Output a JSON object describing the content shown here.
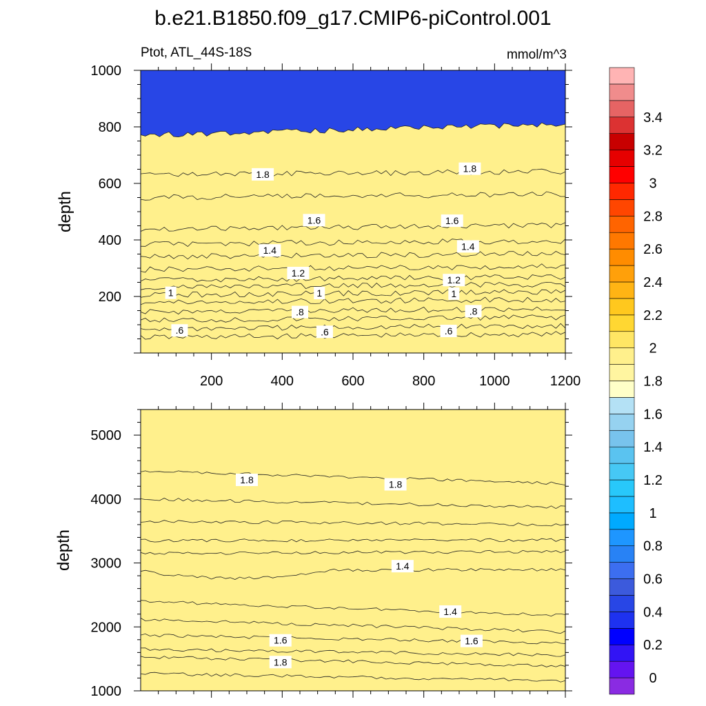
{
  "chart_data": [
    {
      "type": "heatmap",
      "title": "b.e21.B1850.f09_g17.CMIP6-piControl.001",
      "subtitle_left": "Ptot, ATL_44S-18S",
      "subtitle_right": "mmol/m^3",
      "ylabel": "depth",
      "xlim": [
        0,
        1200
      ],
      "ylim": [
        1000,
        0
      ],
      "x_ticks": [
        200,
        400,
        600,
        800,
        1000,
        1200
      ],
      "y_ticks": [
        200,
        400,
        600,
        800,
        1000
      ],
      "contour_depths": [
        {
          "level": 0.5,
          "depth": 55
        },
        {
          "level": 0.6,
          "depth": 85
        },
        {
          "level": 0.7,
          "depth": 115
        },
        {
          "level": 0.8,
          "depth": 145
        },
        {
          "level": 0.9,
          "depth": 178
        },
        {
          "level": 1.0,
          "depth": 205
        },
        {
          "level": 1.1,
          "depth": 232
        },
        {
          "level": 1.2,
          "depth": 258
        },
        {
          "level": 1.3,
          "depth": 295
        },
        {
          "level": 1.4,
          "depth": 340
        },
        {
          "level": 1.5,
          "depth": 385
        },
        {
          "level": 1.6,
          "depth": 440
        },
        {
          "level": 1.7,
          "depth": 550
        },
        {
          "level": 1.8,
          "depth": 630
        },
        {
          "level": 1.9,
          "depth": 770
        }
      ],
      "labels": [
        {
          "text": ".6",
          "x": 110,
          "depth": 80
        },
        {
          "text": ".6",
          "x": 520,
          "depth": 75
        },
        {
          "text": ".6",
          "x": 870,
          "depth": 78
        },
        {
          "text": ".8",
          "x": 450,
          "depth": 145
        },
        {
          "text": ".8",
          "x": 940,
          "depth": 148
        },
        {
          "text": "1",
          "x": 85,
          "depth": 213
        },
        {
          "text": "1",
          "x": 505,
          "depth": 212
        },
        {
          "text": "1",
          "x": 885,
          "depth": 210
        },
        {
          "text": "1.2",
          "x": 445,
          "depth": 283
        },
        {
          "text": "1.2",
          "x": 885,
          "depth": 258
        },
        {
          "text": "1.4",
          "x": 365,
          "depth": 363
        },
        {
          "text": "1.4",
          "x": 925,
          "depth": 377
        },
        {
          "text": "1.6",
          "x": 490,
          "depth": 470
        },
        {
          "text": "1.6",
          "x": 880,
          "depth": 468
        },
        {
          "text": "1.8",
          "x": 345,
          "depth": 632
        },
        {
          "text": "1.8",
          "x": 930,
          "depth": 652
        }
      ]
    },
    {
      "type": "heatmap",
      "ylabel": "depth",
      "xlim": [
        0,
        1200
      ],
      "ylim": [
        5400,
        1000
      ],
      "y_ticks": [
        1000,
        2000,
        3000,
        4000,
        5000
      ],
      "contour_depths": [
        {
          "level": 1.9,
          "depth_start": 1270,
          "depth_end": 1160
        },
        {
          "level": 1.8,
          "depth_start": 1530,
          "depth_end": 1390
        },
        {
          "level": 1.7,
          "depth_start": 1650,
          "depth_end": 1560
        },
        {
          "level": 1.6,
          "depth_start": 1870,
          "depth_end": 1750
        },
        {
          "level": 1.5,
          "depth_start": 2120,
          "depth_end": 1920
        },
        {
          "level": 1.4,
          "depth_start": 2400,
          "depth_end": 2180
        },
        {
          "level": 1.4,
          "depth_start": 2870,
          "depth_end": 2900
        },
        {
          "level": 1.5,
          "depth_start": 3150,
          "depth_end": 3180
        },
        {
          "level": 1.6,
          "depth_start": 3350,
          "depth_end": 3360
        },
        {
          "level": 1.7,
          "depth_start": 3650,
          "depth_end": 3600
        },
        {
          "level": 1.8,
          "depth_start": 4000,
          "depth_end": 3870
        },
        {
          "level": 1.9,
          "depth_start": 4440,
          "depth_end": 4240
        }
      ],
      "labels": [
        {
          "text": "1.8",
          "x": 395,
          "depth": 1450
        },
        {
          "text": "1.6",
          "x": 395,
          "depth": 1790
        },
        {
          "text": "1.6",
          "x": 935,
          "depth": 1780
        },
        {
          "text": "1.4",
          "x": 875,
          "depth": 2240
        },
        {
          "text": "1.4",
          "x": 740,
          "depth": 2950
        },
        {
          "text": "1.8",
          "x": 300,
          "depth": 4300
        },
        {
          "text": "1.8",
          "x": 720,
          "depth": 4230
        }
      ]
    },
    {
      "type": "colorbar",
      "levels": [
        -0.1,
        0,
        0.1,
        0.2,
        0.3,
        0.4,
        0.5,
        0.6,
        0.7,
        0.8,
        0.9,
        1.0,
        1.1,
        1.2,
        1.3,
        1.4,
        1.5,
        1.6,
        1.7,
        1.8,
        1.9,
        2.0,
        2.1,
        2.2,
        2.3,
        2.4,
        2.5,
        2.6,
        2.7,
        2.8,
        2.9,
        3.0,
        3.1,
        3.2,
        3.3,
        3.4,
        3.5,
        3.6
      ],
      "colors": [
        "#8a2be2",
        "#6414f0",
        "#3214f5",
        "#0000ff",
        "#1e32f0",
        "#2846e6",
        "#3c5adc",
        "#3c6ef0",
        "#2882f5",
        "#1e96ff",
        "#00aaff",
        "#1ebeff",
        "#28c8fa",
        "#46c8f5",
        "#5ac3f0",
        "#78c3ed",
        "#96d2f0",
        "#b4e1f5",
        "#ffffc8",
        "#fff5a0",
        "#fff08c",
        "#ffe664",
        "#ffd732",
        "#ffc81e",
        "#ffb414",
        "#ffa00a",
        "#ff8c00",
        "#ff7800",
        "#ff6400",
        "#ff4600",
        "#ff2800",
        "#ff0000",
        "#e60000",
        "#c80000",
        "#dc3232",
        "#e66464",
        "#f08c8c",
        "#ffb4b4"
      ],
      "tick_labels": [
        "0",
        "0.2",
        "0.4",
        "0.6",
        "0.8",
        "1",
        "1.2",
        "1.4",
        "1.6",
        "1.8",
        "2",
        "2.2",
        "2.4",
        "2.6",
        "2.8",
        "3",
        "3.2",
        "3.4"
      ]
    }
  ]
}
